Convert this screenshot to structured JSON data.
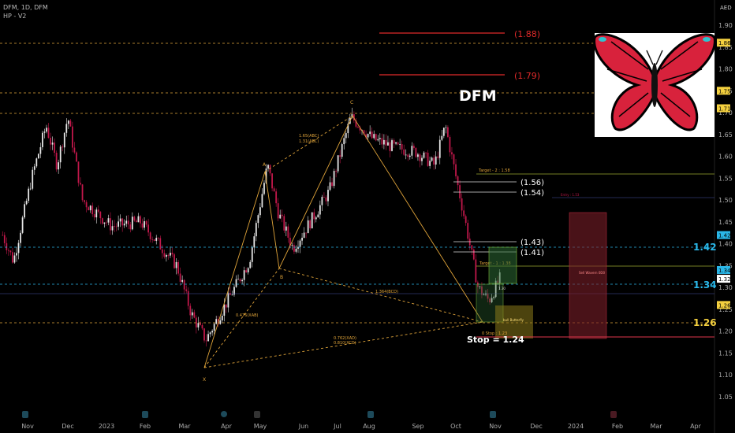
{
  "header": {
    "symbol_line": "DFM, 1D, DFM",
    "indicator": "HP - V2"
  },
  "currency": "AED",
  "title": "DFM",
  "colors": {
    "up": "#e8e8e8",
    "down": "#c2184b",
    "pattern": "#e0a43a",
    "level_cyan": "#2ab7e8",
    "level_yellow": "#f4d03f",
    "red_line": "#e02a2a",
    "target_line": "#9aa832",
    "stop_line": "#e0364b"
  },
  "chart_data": {
    "type": "candlestick",
    "x_ticks": [
      "Nov",
      "Dec",
      "2023",
      "Feb",
      "Mar",
      "Apr",
      "May",
      "Jun",
      "Jul",
      "Aug",
      "Sep",
      "Oct",
      "Nov",
      "Dec",
      "2024",
      "Feb",
      "Mar",
      "Apr"
    ],
    "y_ticks": [
      "1.90",
      "1.85",
      "1.80",
      "1.75",
      "1.70",
      "1.65",
      "1.60",
      "1.55",
      "1.50",
      "1.45",
      "1.40",
      "1.35",
      "1.30",
      "1.25",
      "1.20",
      "1.15",
      "1.10",
      "1.05"
    ],
    "ylim": [
      1.04,
      1.92
    ],
    "price_path": [
      {
        "t": 0,
        "v": 1.42
      },
      {
        "t": 3,
        "v": 1.36
      },
      {
        "t": 8,
        "v": 1.55
      },
      {
        "t": 12,
        "v": 1.67
      },
      {
        "t": 15,
        "v": 1.58
      },
      {
        "t": 18,
        "v": 1.69
      },
      {
        "t": 22,
        "v": 1.5
      },
      {
        "t": 30,
        "v": 1.44
      },
      {
        "t": 38,
        "v": 1.45
      },
      {
        "t": 48,
        "v": 1.35
      },
      {
        "t": 52,
        "v": 1.24
      },
      {
        "t": 56,
        "v": 1.18
      },
      {
        "t": 62,
        "v": 1.27
      },
      {
        "t": 68,
        "v": 1.36
      },
      {
        "t": 73,
        "v": 1.58
      },
      {
        "t": 76,
        "v": 1.47
      },
      {
        "t": 80,
        "v": 1.39
      },
      {
        "t": 84,
        "v": 1.44
      },
      {
        "t": 90,
        "v": 1.52
      },
      {
        "t": 96,
        "v": 1.69
      },
      {
        "t": 102,
        "v": 1.64
      },
      {
        "t": 108,
        "v": 1.62
      },
      {
        "t": 114,
        "v": 1.61
      },
      {
        "t": 119,
        "v": 1.58
      },
      {
        "t": 122,
        "v": 1.67
      },
      {
        "t": 125,
        "v": 1.55
      },
      {
        "t": 128,
        "v": 1.43
      },
      {
        "t": 131,
        "v": 1.3
      },
      {
        "t": 134,
        "v": 1.27
      },
      {
        "t": 137,
        "v": 1.32
      }
    ],
    "pattern": {
      "name": "bull Butterfly",
      "points": [
        {
          "label": "X",
          "date": "2023-03-23",
          "price": 1.16
        },
        {
          "label": "A",
          "date": "2023-05-04",
          "price": 1.59
        },
        {
          "label": "B",
          "date": "2023-05-25",
          "price": 1.39
        },
        {
          "label": "C",
          "date": "2023-07-25",
          "price": 1.7
        },
        {
          "label": "D",
          "date": "2023-10-23",
          "price": 1.26
        }
      ],
      "ratios": [
        "1.65(ABC)",
        "1.31(ABC)",
        "0.476(XAB)",
        "1.364(BCD)",
        "0.762(XAD)",
        "0.810(XCD)"
      ]
    },
    "annotations": {
      "red_lines": [
        "(1.88)",
        "(1.79)"
      ],
      "white_levels": [
        "(1.56)",
        "(1.54)",
        "(1.43)",
        "(1.41)"
      ],
      "target2": "Target - 2 : 1.58",
      "target1": "Target - 1 : 1.38",
      "stop_small": "0 Stop : 1.23",
      "stop_big": "Stop = 1.24",
      "entry_small": "Entry : 1.53",
      "sell_box": "Sell Wavern 0D0",
      "small_value": "1.30",
      "levels": [
        "1.42",
        "1.34",
        "1.26"
      ]
    },
    "right_axis_tags": [
      "1.86",
      "1.75",
      "1.71",
      "1.42",
      "1.34",
      "1.32",
      "1.26"
    ]
  }
}
